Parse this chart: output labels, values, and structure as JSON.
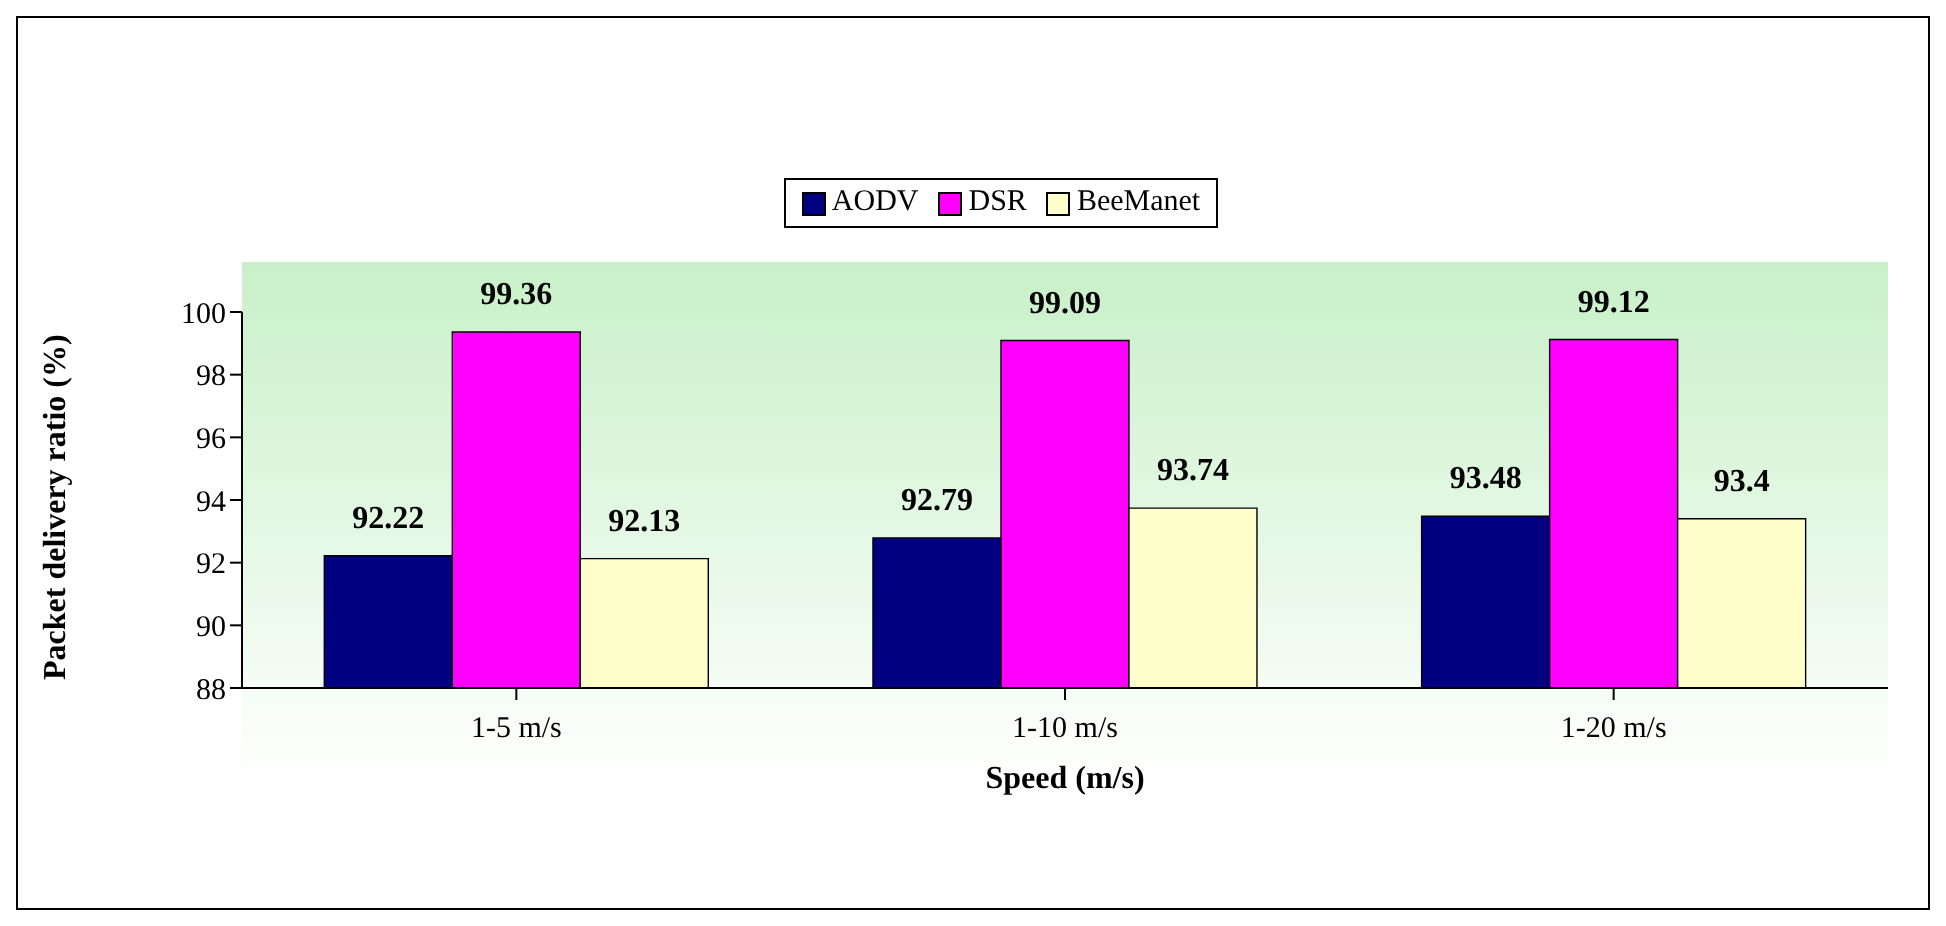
{
  "chart_data": {
    "type": "bar",
    "xlabel": "Speed (m/s)",
    "ylabel": "Packet delivery ratio (%)",
    "categories": [
      "1-5 m/s",
      "1-10 m/s",
      "1-20 m/s"
    ],
    "series": [
      {
        "name": "AODV",
        "color": "#000080",
        "values": [
          92.22,
          92.79,
          93.48
        ]
      },
      {
        "name": "DSR",
        "color": "#ff00ff",
        "values": [
          99.36,
          99.09,
          99.12
        ]
      },
      {
        "name": "BeeManet",
        "color": "#ffffcc",
        "values": [
          92.13,
          93.74,
          93.4
        ]
      }
    ],
    "ylim": [
      88,
      100
    ],
    "yticks": [
      88,
      90,
      92,
      94,
      96,
      98,
      100
    ],
    "grid": false,
    "legend": "top",
    "data_labels": true
  }
}
